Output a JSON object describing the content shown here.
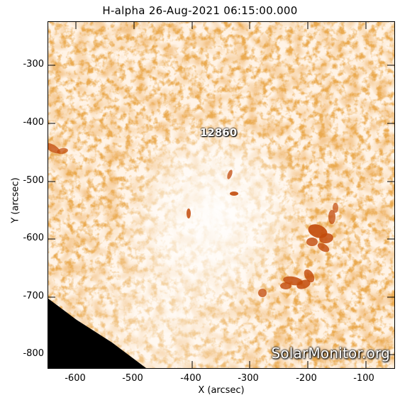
{
  "title": "H-alpha 26-Aug-2021 06:15:00.000",
  "x_axis_label": "X (arcsec)",
  "y_axis_label": "Y (arcsec)",
  "x_ticks": [
    "-600",
    "-500",
    "-400",
    "-300",
    "-200",
    "-100"
  ],
  "y_ticks": [
    "-300",
    "-400",
    "-500",
    "-600",
    "-700",
    "-800"
  ],
  "active_region_label": "12860",
  "watermark": "SolarMonitor.org",
  "colors": {
    "plage": "#c24a0a",
    "background": "#fff6ee",
    "limb_outside": "#000000"
  }
}
